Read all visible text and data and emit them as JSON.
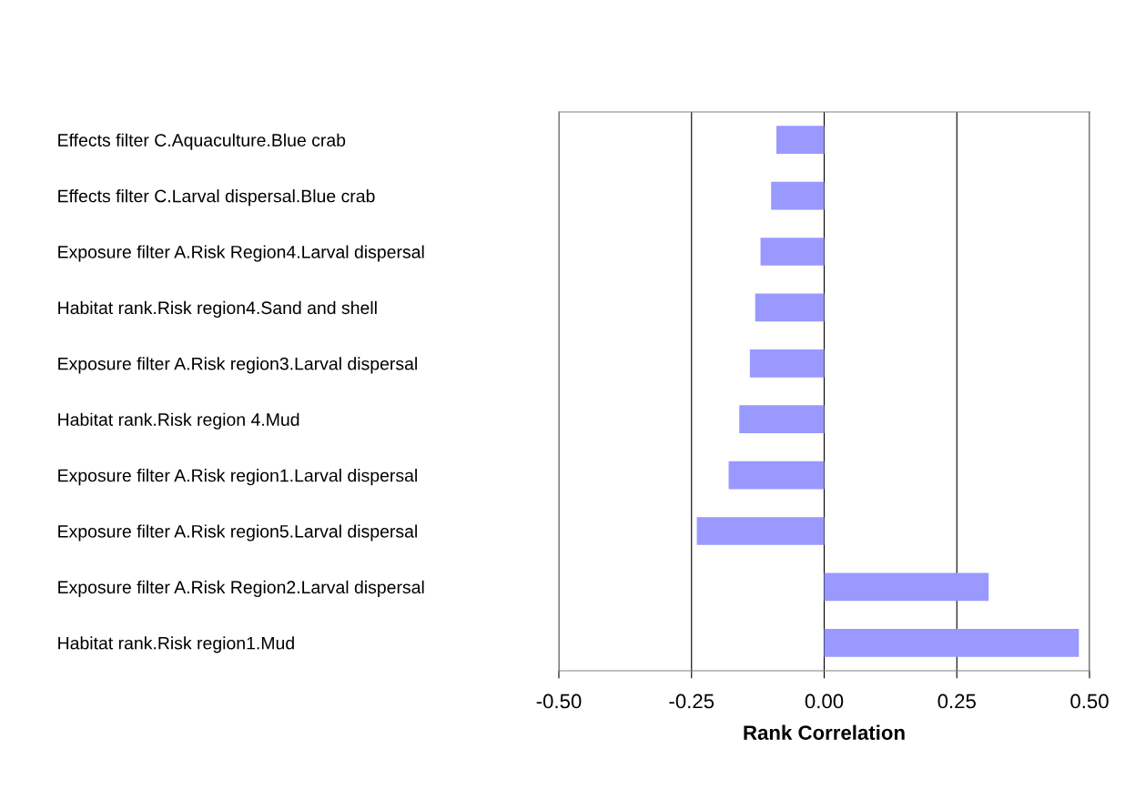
{
  "chart_data": {
    "type": "bar",
    "orientation": "horizontal",
    "xlabel": "Rank Correlation",
    "categories": [
      "Effects filter C.Aquaculture.Blue crab",
      "Effects filter C.Larval dispersal.Blue crab",
      "Exposure filter A.Risk Region4.Larval dispersal",
      "Habitat rank.Risk region4.Sand and shell",
      "Exposure filter A.Risk region3.Larval dispersal",
      "Habitat rank.Risk region 4.Mud",
      "Exposure filter A.Risk region1.Larval dispersal",
      "Exposure filter A.Risk region5.Larval dispersal",
      "Exposure filter A.Risk Region2.Larval dispersal",
      "Habitat rank.Risk region1.Mud"
    ],
    "values": [
      -0.09,
      -0.1,
      -0.12,
      -0.13,
      -0.14,
      -0.16,
      -0.18,
      -0.24,
      0.31,
      0.48
    ],
    "color": "#9999ff",
    "xlim": [
      -0.5,
      0.5
    ],
    "xticks": [
      {
        "value": -0.5,
        "label": "-0.50"
      },
      {
        "value": -0.25,
        "label": "-0.25"
      },
      {
        "value": 0,
        "label": "0.00"
      },
      {
        "value": 0.25,
        "label": "0.25"
      },
      {
        "value": 0.5,
        "label": "0.50"
      }
    ],
    "grid": "x"
  }
}
